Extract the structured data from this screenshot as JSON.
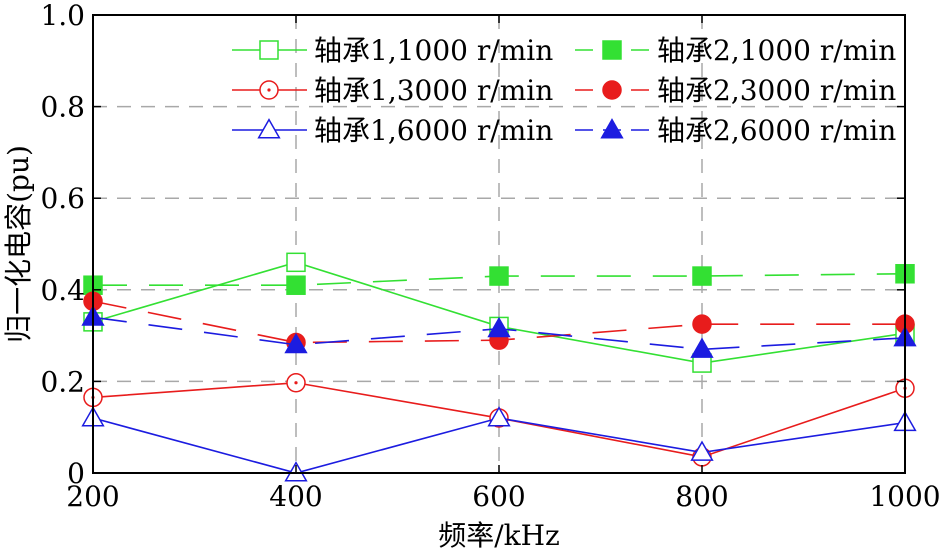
{
  "chart_data": {
    "type": "line",
    "title": "",
    "xlabel": "频率/kHz",
    "ylabel": "归一化电容(pu)",
    "x": [
      200,
      400,
      600,
      800,
      1000
    ],
    "xlim": [
      200,
      1000
    ],
    "ylim": [
      0,
      1.0
    ],
    "x_ticks": [
      200,
      400,
      600,
      800,
      1000
    ],
    "y_ticks": [
      0,
      0.2,
      0.4,
      0.6,
      0.8,
      1.0
    ],
    "x_tick_labels": [
      "200",
      "400",
      "600",
      "800",
      "1000"
    ],
    "y_tick_labels": [
      "0",
      "0.2",
      "0.4",
      "0.6",
      "0.8",
      "1.0"
    ],
    "grid": true,
    "legend_position": "top-right",
    "series": [
      {
        "name": "轴承1,1000 r/min",
        "color": "#33e033",
        "line_style": "solid",
        "marker": "square",
        "marker_fill": "open",
        "values": [
          0.33,
          0.46,
          0.32,
          0.24,
          0.305
        ]
      },
      {
        "name": "轴承2,1000 r/min",
        "color": "#33e033",
        "line_style": "dashed",
        "marker": "square",
        "marker_fill": "filled",
        "values": [
          0.41,
          0.41,
          0.43,
          0.43,
          0.435
        ]
      },
      {
        "name": "轴承1,3000 r/min",
        "color": "#e81c1c",
        "line_style": "solid",
        "marker": "circle",
        "marker_fill": "open",
        "values": [
          0.165,
          0.197,
          0.12,
          0.035,
          0.185
        ]
      },
      {
        "name": "轴承2,3000 r/min",
        "color": "#e81c1c",
        "line_style": "dashed",
        "marker": "circle",
        "marker_fill": "filled",
        "values": [
          0.375,
          0.285,
          0.29,
          0.325,
          0.325
        ]
      },
      {
        "name": "轴承1,6000 r/min",
        "color": "#1c1ce0",
        "line_style": "solid",
        "marker": "triangle",
        "marker_fill": "open",
        "values": [
          0.12,
          0.0,
          0.12,
          0.045,
          0.11
        ]
      },
      {
        "name": "轴承2,6000 r/min",
        "color": "#1c1ce0",
        "line_style": "dashed",
        "marker": "triangle",
        "marker_fill": "filled",
        "values": [
          0.34,
          0.28,
          0.315,
          0.27,
          0.295
        ]
      }
    ]
  }
}
